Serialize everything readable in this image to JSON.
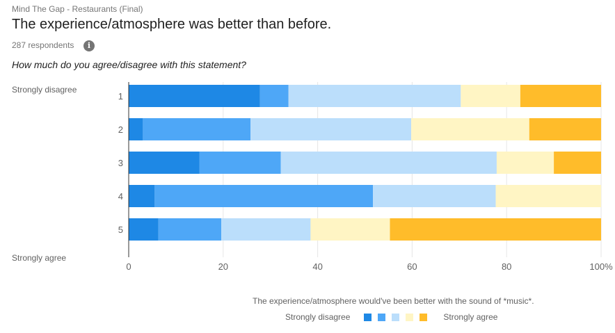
{
  "header": {
    "form_title": "Mind The Gap - Restaurants (Final)",
    "title": "The experience/atmosphere was better than before.",
    "respondents": "287 respondents",
    "info_icon": "info-icon",
    "question": "How much do you agree/disagree with this statement?"
  },
  "scale_labels": {
    "low": "Strongly disagree",
    "high": "Strongly agree"
  },
  "colors": [
    "#1e88e5",
    "#4ea7f7",
    "#bbdefb",
    "#fff5c4",
    "#ffbc2a"
  ],
  "chart_data": {
    "type": "bar",
    "orientation": "horizontal",
    "stacked": "percent",
    "categories": [
      "1",
      "2",
      "3",
      "4",
      "5"
    ],
    "series": [
      {
        "values": [
          27.8,
          3.0,
          15.0,
          5.5,
          6.3
        ]
      },
      {
        "values": [
          6.0,
          22.8,
          17.2,
          46.2,
          13.3
        ]
      },
      {
        "values": [
          36.5,
          34.0,
          45.7,
          26.0,
          18.9
        ]
      },
      {
        "values": [
          12.6,
          25.0,
          12.1,
          22.3,
          16.8
        ]
      },
      {
        "values": [
          17.1,
          15.2,
          10.0,
          0.0,
          44.7
        ]
      }
    ],
    "xlim": [
      0,
      100
    ],
    "xticks": [
      "0",
      "20",
      "40",
      "60",
      "80",
      "100%"
    ],
    "caption": "The experience/atmosphere would've been better with the sound of *music*.",
    "legend": {
      "left": "Strongly disagree",
      "right": "Strongly agree"
    }
  }
}
